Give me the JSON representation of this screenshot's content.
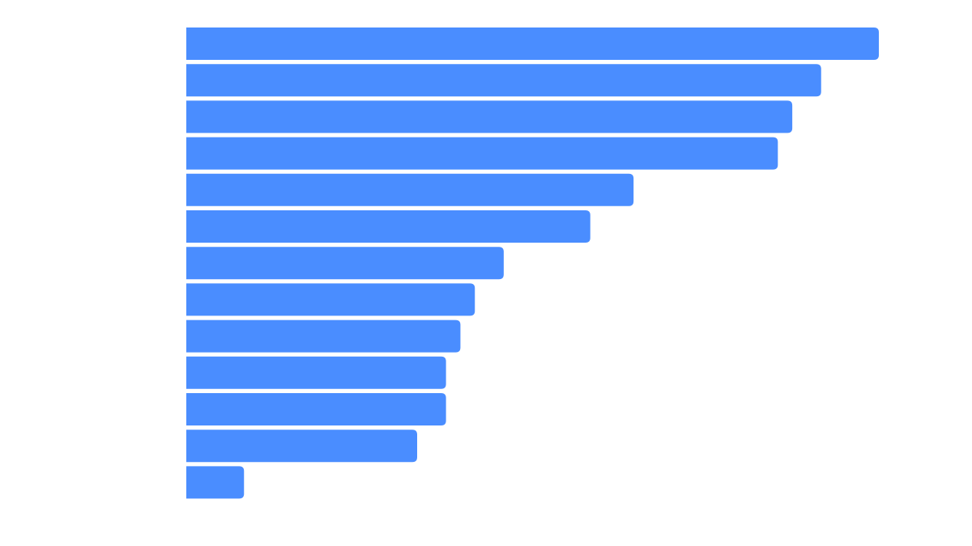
{
  "colors": {
    "background": "#ffffff",
    "bar": "#4a8dff"
  },
  "chart_data": {
    "type": "bar",
    "orientation": "horizontal",
    "values": [
      48,
      44,
      42,
      41,
      31,
      28,
      22,
      20,
      19,
      18,
      18,
      16,
      4
    ],
    "xlim": [
      0,
      48
    ],
    "grid": false,
    "legend": "none"
  }
}
